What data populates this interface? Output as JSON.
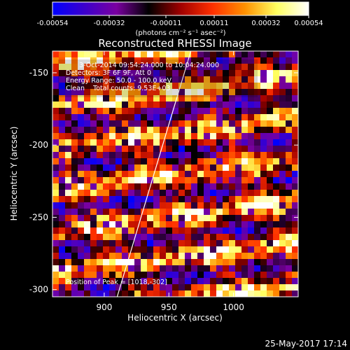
{
  "chart_data": {
    "type": "heatmap",
    "title": "Reconstructed RHESSI Image",
    "xlabel": "Heliocentric X (arcsec)",
    "ylabel": "Heliocentric Y (arcsec)",
    "xlim": [
      860,
      1050
    ],
    "ylim": [
      -305,
      -135
    ],
    "x_ticks": [
      900,
      950,
      1000
    ],
    "x_tick_labels": [
      "900",
      "950",
      "1000"
    ],
    "y_ticks": [
      -150,
      -200,
      -250,
      -300
    ],
    "y_tick_labels": [
      "-150",
      "-200",
      "-250",
      "-300"
    ],
    "colorbar": {
      "orientation": "horizontal",
      "range": [
        -0.00054,
        0.00054
      ],
      "tick_labels": [
        "-0.00054",
        "-0.00032",
        "-0.00011",
        "0.00011",
        "0.00032",
        "0.00054"
      ],
      "unit_label": "(photons cm⁻² s⁻¹ asec⁻²)",
      "colormap_stops": [
        "#0000ff",
        "#3c00cc",
        "#7a00a0",
        "#000000",
        "#a00000",
        "#ff3000",
        "#ff9000",
        "#ffff60",
        "#ffffff"
      ]
    },
    "annotations": [
      "3-Oct-2014 09:54:24.000 to 10:04:24.000",
      "Detectors: 3F 6F 9F, Att 0",
      "Energy Range: 50.0 - 100.0 keV",
      "Clean    Total counts: 9.53E+03"
    ],
    "peak_label": "Position of Peak = [1018,-302]",
    "peak_position": [
      1018,
      -302
    ],
    "limb_line": [
      [
        910,
        -305
      ],
      [
        967,
        -135
      ]
    ],
    "grid": false
  },
  "footer": {
    "date": "25-May-2017 17:14"
  }
}
